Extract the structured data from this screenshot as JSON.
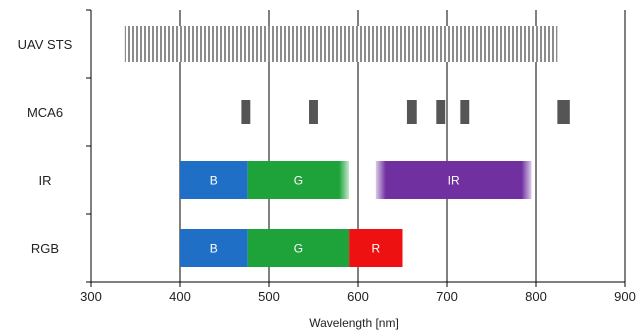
{
  "chart_data": {
    "type": "bar",
    "title": "",
    "xlabel": "Wavelength [nm]",
    "ylabel": "",
    "xlim": [
      300,
      900
    ],
    "xticks": [
      300,
      400,
      500,
      600,
      700,
      800,
      900
    ],
    "grid": "vertical major gridlines at x tick positions",
    "sensors": [
      "UAV STS",
      "MCA6",
      "IR",
      "RGB"
    ],
    "series": [
      {
        "sensor": "UAV STS",
        "style": "hatched",
        "color": "#8c8c8c",
        "bands": [
          {
            "label": "",
            "start": 338,
            "end": 824
          }
        ]
      },
      {
        "sensor": "MCA6",
        "style": "solid",
        "color": "#555555",
        "bands": [
          {
            "label": "",
            "start": 469,
            "end": 479
          },
          {
            "label": "",
            "start": 545,
            "end": 555
          },
          {
            "label": "",
            "start": 655,
            "end": 666
          },
          {
            "label": "",
            "start": 688,
            "end": 698
          },
          {
            "label": "",
            "start": 715,
            "end": 725
          },
          {
            "label": "",
            "start": 824,
            "end": 838
          }
        ]
      },
      {
        "sensor": "IR",
        "style": "solid-faded-edge",
        "color": "",
        "bands": [
          {
            "label": "B",
            "start": 400,
            "end": 476,
            "color": "#1f6fc6"
          },
          {
            "label": "G",
            "start": 476,
            "end": 590,
            "color": "#1ea33a",
            "fade_right": true
          },
          {
            "label": "IR",
            "start": 620,
            "end": 795,
            "color": "#7030a0",
            "fade_left": true,
            "fade_right": true
          }
        ]
      },
      {
        "sensor": "RGB",
        "style": "solid",
        "color": "",
        "bands": [
          {
            "label": "B",
            "start": 400,
            "end": 476,
            "color": "#1f6fc6"
          },
          {
            "label": "G",
            "start": 476,
            "end": 590,
            "color": "#1ea33a"
          },
          {
            "label": "R",
            "start": 590,
            "end": 650,
            "color": "#ee1111"
          }
        ]
      }
    ]
  }
}
